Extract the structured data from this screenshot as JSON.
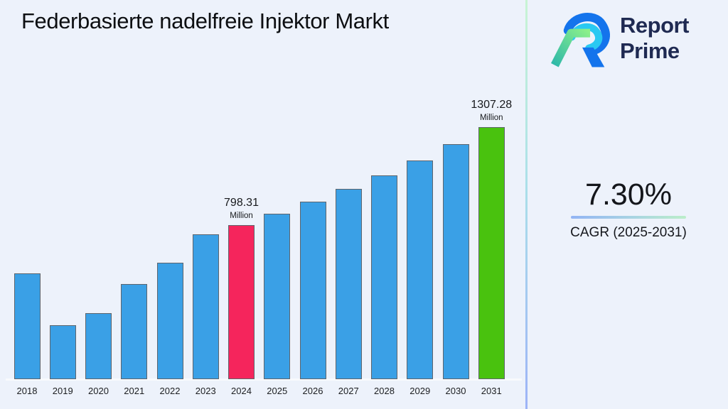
{
  "title": "Federbasierte nadelfreie Injektor Markt",
  "logo": {
    "line1": "Report",
    "line2": "Prime",
    "text_color": "#1F2A52",
    "mark_blue": "#1474EC",
    "mark_cyan": "#29C9F2",
    "mark_green_start": "#2FB9A8",
    "mark_green_end": "#8BF08A"
  },
  "cagr": {
    "value": "7.30%",
    "caption": "CAGR (2025-2031)"
  },
  "chart_data": {
    "type": "bar",
    "title": "Federbasierte nadelfreie Injektor Markt",
    "unit": "Million",
    "categories": [
      "2018",
      "2019",
      "2020",
      "2021",
      "2022",
      "2023",
      "2024",
      "2025",
      "2026",
      "2027",
      "2028",
      "2029",
      "2030",
      "2031"
    ],
    "values": [
      548,
      280,
      344,
      494,
      605,
      752,
      798.31,
      856.59,
      919.12,
      986.21,
      1058.21,
      1135.46,
      1218.35,
      1307.28
    ],
    "bar_colors": [
      "#3AA0E6",
      "#3AA0E6",
      "#3AA0E6",
      "#3AA0E6",
      "#3AA0E6",
      "#3AA0E6",
      "#F5255C",
      "#3AA0E6",
      "#3AA0E6",
      "#3AA0E6",
      "#3AA0E6",
      "#3AA0E6",
      "#3AA0E6",
      "#49C20E"
    ],
    "annotations": [
      {
        "category": "2024",
        "text": "798.31",
        "sub": "Million"
      },
      {
        "category": "2031",
        "text": "1307.28",
        "sub": "Million"
      }
    ],
    "ylim": [
      0,
      1350
    ],
    "value_axis_labels": false,
    "grid": false,
    "legend": false,
    "background": "#EDF2FB"
  }
}
